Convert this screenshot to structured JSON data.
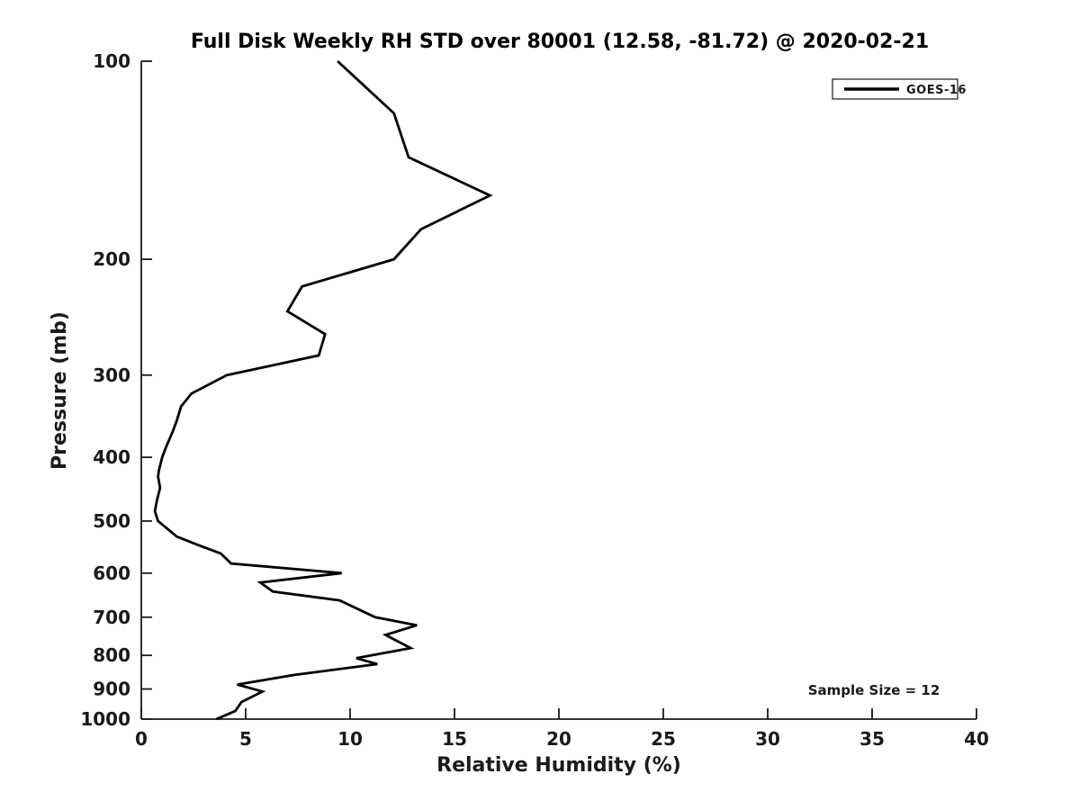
{
  "figure": {
    "background": "#ffffff"
  },
  "colors": {
    "line": "#000000",
    "axis": "#1a1a1a",
    "text": "#1a1a1a",
    "background": "#ffffff"
  },
  "chart_data": {
    "type": "line",
    "title": "Full Disk Weekly RH STD over 80001 (12.58, -81.72) @ 2020-02-21",
    "xlabel": "Relative Humidity (%)",
    "ylabel": "Pressure (mb)",
    "annotation": "Sample Size = 12",
    "xlim": [
      0,
      40
    ],
    "x_ticks": [
      0,
      5,
      10,
      15,
      20,
      25,
      30,
      35,
      40
    ],
    "ylim": [
      100,
      1000
    ],
    "y_ticks": [
      100,
      200,
      300,
      400,
      500,
      600,
      700,
      800,
      900,
      1000
    ],
    "y_scale": "log",
    "y_direction": "increasing-downward",
    "grid": false,
    "legend_position": "top-right",
    "series": [
      {
        "name": "GOES-16",
        "color": "#000000",
        "points_pressure_rh": [
          [
            100,
            9.4
          ],
          [
            120,
            12.1
          ],
          [
            140,
            12.8
          ],
          [
            160,
            16.7
          ],
          [
            180,
            13.4
          ],
          [
            200,
            12.1
          ],
          [
            220,
            7.7
          ],
          [
            240,
            7.0
          ],
          [
            260,
            8.8
          ],
          [
            280,
            8.5
          ],
          [
            300,
            4.1
          ],
          [
            320,
            2.4
          ],
          [
            335,
            1.9
          ],
          [
            352,
            1.7
          ],
          [
            366,
            1.5
          ],
          [
            385,
            1.2
          ],
          [
            400,
            1.0
          ],
          [
            418,
            0.85
          ],
          [
            428,
            0.8
          ],
          [
            445,
            0.9
          ],
          [
            465,
            0.75
          ],
          [
            483,
            0.65
          ],
          [
            500,
            0.8
          ],
          [
            528,
            1.7
          ],
          [
            545,
            2.8
          ],
          [
            560,
            3.8
          ],
          [
            580,
            4.3
          ],
          [
            600,
            9.6
          ],
          [
            620,
            5.7
          ],
          [
            640,
            6.3
          ],
          [
            660,
            9.5
          ],
          [
            700,
            11.2
          ],
          [
            720,
            13.2
          ],
          [
            745,
            11.7
          ],
          [
            780,
            12.9
          ],
          [
            808,
            10.3
          ],
          [
            825,
            11.3
          ],
          [
            857,
            7.3
          ],
          [
            886,
            4.6
          ],
          [
            908,
            5.8
          ],
          [
            942,
            4.8
          ],
          [
            972,
            4.5
          ],
          [
            1000,
            3.6
          ]
        ]
      }
    ]
  }
}
